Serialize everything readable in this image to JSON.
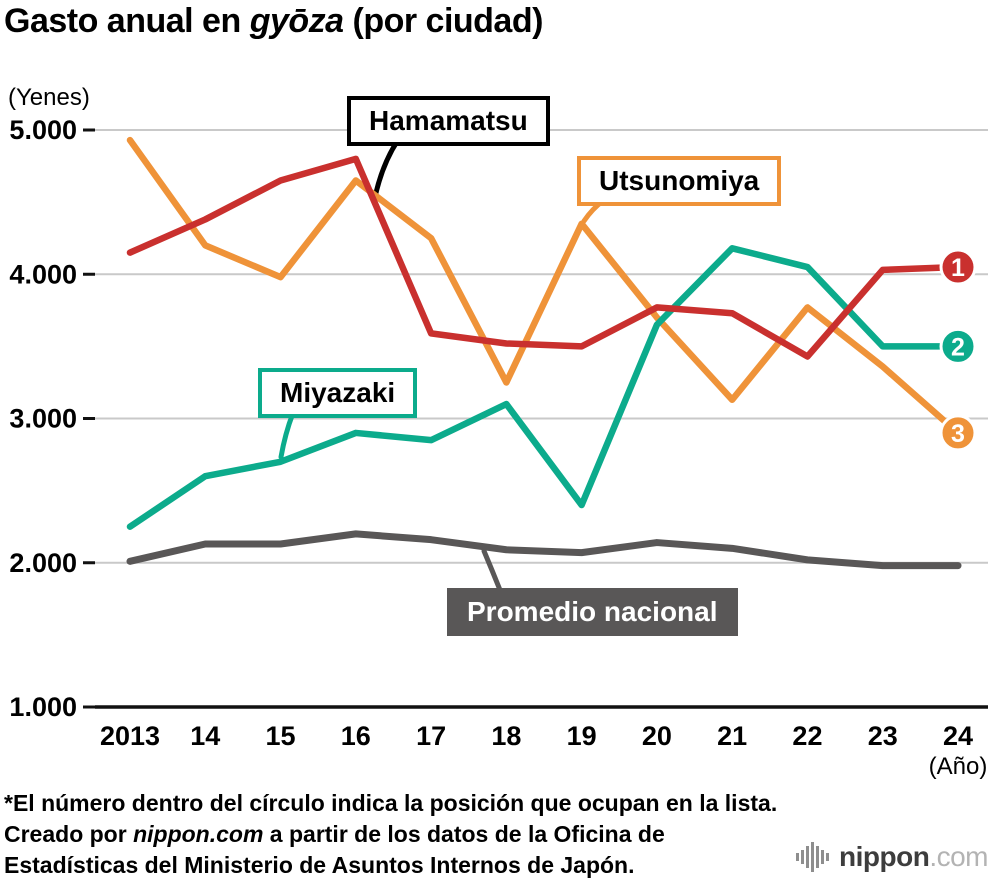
{
  "title": {
    "prefix": "Gasto anual en ",
    "italic": "gyōza",
    "suffix": " (por ciudad)"
  },
  "chart_data": {
    "type": "line",
    "title": "Gasto anual en gyōza (por ciudad)",
    "y_unit_label": "(Yenes)",
    "x_unit_label": "(Año)",
    "x_labels": [
      "2013",
      "14",
      "15",
      "16",
      "17",
      "18",
      "19",
      "20",
      "21",
      "22",
      "23",
      "24"
    ],
    "ylim": [
      1000,
      5000
    ],
    "y_ticks": [
      1000,
      2000,
      3000,
      4000,
      5000
    ],
    "y_tick_labels": [
      "1.000",
      "2.000",
      "3.000",
      "4.000",
      "5.000"
    ],
    "grid": true,
    "legend_position": "inline-callouts",
    "series": [
      {
        "name": "Hamamatsu",
        "color": "#c9302e",
        "rank": "1",
        "values": [
          4150,
          4380,
          4650,
          4800,
          3590,
          3520,
          3500,
          3770,
          3730,
          3430,
          4030,
          4050
        ]
      },
      {
        "name": "Miyazaki",
        "color": "#0cab8c",
        "rank": "2",
        "values": [
          2250,
          2600,
          2700,
          2900,
          2850,
          3100,
          2400,
          3650,
          4180,
          4050,
          3500,
          3500
        ]
      },
      {
        "name": "Utsunomiya",
        "color": "#ef9339",
        "rank": "3",
        "values": [
          4930,
          4200,
          3980,
          4650,
          4250,
          3250,
          4350,
          3700,
          3130,
          3770,
          3360,
          2900
        ]
      },
      {
        "name": "Promedio nacional",
        "color": "#595757",
        "rank": null,
        "values": [
          2010,
          2130,
          2130,
          2200,
          2160,
          2090,
          2070,
          2140,
          2100,
          2020,
          1980,
          1980
        ]
      }
    ]
  },
  "notes": {
    "line1": "*El número dentro del círculo indica la posición que ocupan en la lista.",
    "line2_prefix": "Creado por ",
    "line2_emphasis": "nippon.com",
    "line2_suffix": " a partir de los datos de la Oficina de",
    "line3": "Estadísticas del Ministerio de Asuntos Internos de Japón."
  },
  "logo": {
    "brand": "nippon",
    "tld": ".com"
  }
}
